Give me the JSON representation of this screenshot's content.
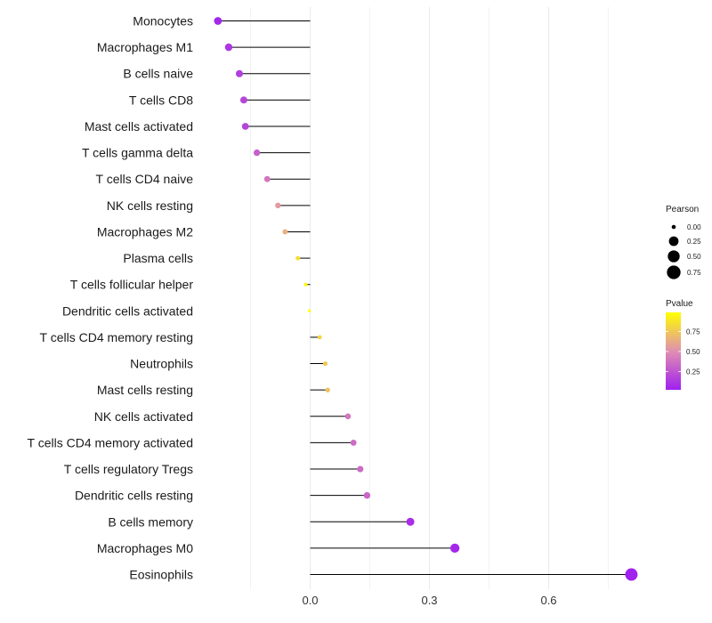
{
  "chart_data": {
    "type": "lollipop",
    "title": "",
    "xlabel": "",
    "ylabel": "",
    "xlim": [
      -0.3,
      0.82
    ],
    "grid": true,
    "x_ticks": [
      {
        "value": 0.0,
        "label": "0.0"
      },
      {
        "value": 0.3,
        "label": "0.3"
      },
      {
        "value": 0.6,
        "label": "0.6"
      }
    ],
    "x_minor_gridlines": [
      -0.15,
      0.15,
      0.45,
      0.75
    ],
    "categories": [
      "Monocytes",
      "Macrophages M1",
      "B cells naive",
      "T cells CD8",
      "Mast cells activated",
      "T cells gamma delta",
      "T cells CD4 naive",
      "NK cells resting",
      "Macrophages M2",
      "Plasma cells",
      "T cells follicular helper",
      "Dendritic cells activated",
      "T cells CD4 memory resting",
      "Neutrophils",
      "Mast cells resting",
      "NK cells activated",
      "T cells CD4 memory activated",
      "T cells regulatory  Tregs ",
      "Dendritic cells resting",
      "B cells memory",
      "Macrophages M0",
      "Eosinophils"
    ],
    "values": [
      -0.232,
      -0.205,
      -0.178,
      -0.167,
      -0.163,
      -0.134,
      -0.108,
      -0.081,
      -0.063,
      -0.031,
      -0.011,
      -0.002,
      0.024,
      0.038,
      0.044,
      0.095,
      0.109,
      0.126,
      0.143,
      0.252,
      0.364,
      0.808
    ],
    "pvalues": [
      0.05,
      0.12,
      0.15,
      0.18,
      0.18,
      0.3,
      0.4,
      0.55,
      0.65,
      0.85,
      0.95,
      0.99,
      0.8,
      0.75,
      0.72,
      0.4,
      0.35,
      0.35,
      0.33,
      0.08,
      0.05,
      0.03
    ],
    "size_legend": {
      "title": "Pearson",
      "entries": [
        {
          "value": 0.0,
          "label": "0.00"
        },
        {
          "value": 0.25,
          "label": "0.25"
        },
        {
          "value": 0.5,
          "label": "0.50"
        },
        {
          "value": 0.75,
          "label": "0.75"
        }
      ]
    },
    "color_legend": {
      "title": "Pvalue",
      "ticks": [
        {
          "value": 0.25,
          "label": "0.25"
        },
        {
          "value": 0.5,
          "label": "0.50"
        },
        {
          "value": 0.75,
          "label": "0.75"
        }
      ],
      "range": [
        0.02,
        0.99
      ],
      "low_color": "#a020f0",
      "high_color": "#ffff00"
    },
    "stem_color": "#000000",
    "grid_color": "#ebebeb"
  }
}
